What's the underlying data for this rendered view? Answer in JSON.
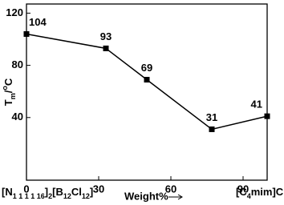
{
  "chart_data": {
    "type": "line",
    "x": [
      0,
      33,
      50,
      77,
      100
    ],
    "series": [
      {
        "color": "#000000",
        "values": [
          104,
          93,
          69,
          31,
          41
        ]
      }
    ],
    "xlim": [
      0,
      100
    ],
    "xticks": [
      0,
      30,
      60,
      90
    ],
    "ylim": [
      -8,
      127
    ],
    "yticks": [
      40,
      80,
      120
    ],
    "xlabel": "Weight%",
    "ylabel_parts": [
      {
        "text": "T"
      },
      {
        "sub": "m"
      },
      {
        "text": "/"
      },
      {
        "sup": "o"
      },
      {
        "text": "C"
      }
    ],
    "left_label_parts": [
      {
        "text": "[N"
      },
      {
        "sub": "1 1 1 1 16"
      },
      {
        "text": "]"
      },
      {
        "sub": "2"
      },
      {
        "text": "[B"
      },
      {
        "sub": "12"
      },
      {
        "text": "Cl"
      },
      {
        "sub": "12"
      },
      {
        "text": "]"
      }
    ],
    "right_label_parts": [
      {
        "text": "[C"
      },
      {
        "sub": "4"
      },
      {
        "text": "mim]Cl"
      }
    ]
  }
}
